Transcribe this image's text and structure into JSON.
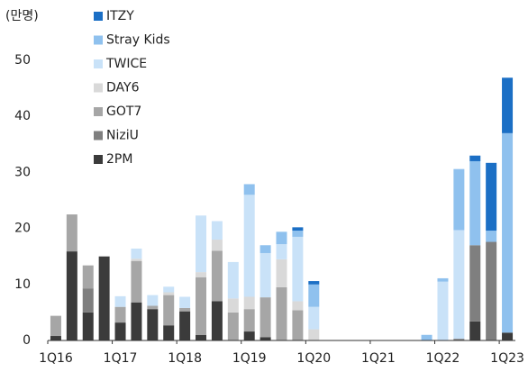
{
  "chart_data": {
    "type": "stacked_bar",
    "unit_label": "(만명)",
    "categories": [
      "1Q16",
      null,
      null,
      null,
      "1Q17",
      null,
      null,
      null,
      "1Q18",
      null,
      null,
      null,
      "1Q19",
      null,
      null,
      null,
      "1Q20",
      null,
      null,
      null,
      "1Q21",
      null,
      null,
      null,
      "1Q22",
      null,
      null,
      null,
      "1Q23"
    ],
    "series": [
      {
        "name": "2PM",
        "color": "#3b3b3b",
        "values": [
          0.8,
          15.9,
          5,
          15,
          3.2,
          6.8,
          5.6,
          2.7,
          5.2,
          1.0,
          7.0,
          0,
          1.6,
          0.6,
          0,
          0,
          0,
          0,
          0,
          0,
          0,
          0,
          0,
          0,
          0,
          0,
          3.4,
          0,
          1.4
        ]
      },
      {
        "name": "NiziU",
        "color": "#7f7f7f",
        "values": [
          0,
          0,
          4.3,
          0,
          0,
          0,
          0,
          0,
          0,
          0,
          0,
          0,
          0,
          0,
          0,
          0,
          0,
          0,
          0,
          0,
          0,
          0,
          0,
          0,
          0,
          0.3,
          13.6,
          17.6,
          0
        ]
      },
      {
        "name": "GOT7",
        "color": "#a6a6a6",
        "values": [
          3.6,
          6.6,
          4.1,
          0,
          2.8,
          7.4,
          0.6,
          5.4,
          0.6,
          10.3,
          9.0,
          5.0,
          4.0,
          7.1,
          9.5,
          5.4,
          0,
          0,
          0,
          0,
          0,
          0,
          0,
          0,
          0,
          0,
          0,
          0,
          0
        ]
      },
      {
        "name": "DAY6",
        "color": "#d9d9d9",
        "values": [
          0,
          0,
          0,
          0,
          0,
          0.4,
          0,
          0.5,
          0,
          0.9,
          2.0,
          2.5,
          2.2,
          0,
          5.0,
          1.6,
          2.0,
          0,
          0,
          0,
          0,
          0,
          0,
          0,
          0,
          0,
          0,
          0,
          0
        ]
      },
      {
        "name": "TWICE",
        "color": "#c9e2f8",
        "values": [
          0,
          0,
          0,
          0,
          1.9,
          1.8,
          1.9,
          1.0,
          2.0,
          10.1,
          3.3,
          6.5,
          18.2,
          7.9,
          2.7,
          11.5,
          4.0,
          0,
          0,
          0,
          0,
          0,
          0,
          0,
          10.5,
          19.4,
          0,
          0,
          0
        ]
      },
      {
        "name": "Stray Kids",
        "color": "#8fc1ee",
        "values": [
          0,
          0,
          0,
          0,
          0,
          0,
          0,
          0,
          0,
          0,
          0,
          0,
          1.9,
          1.4,
          2.2,
          1.1,
          4.0,
          0,
          0,
          0,
          0,
          0,
          0,
          1.0,
          0.6,
          10.9,
          15.0,
          2.0,
          35.6
        ]
      },
      {
        "name": "ITZY",
        "color": "#1b6fc5",
        "values": [
          0,
          0,
          0,
          0,
          0,
          0,
          0,
          0,
          0,
          0,
          0,
          0,
          0,
          0,
          0,
          0.6,
          0.6,
          0,
          0,
          0,
          0,
          0,
          0,
          0,
          0,
          0,
          1.0,
          12.1,
          9.9
        ]
      }
    ],
    "ylim": [
      0,
      50
    ],
    "yticks": [
      0,
      10,
      20,
      30,
      40,
      50
    ],
    "grid": false,
    "legend": "top-left"
  }
}
